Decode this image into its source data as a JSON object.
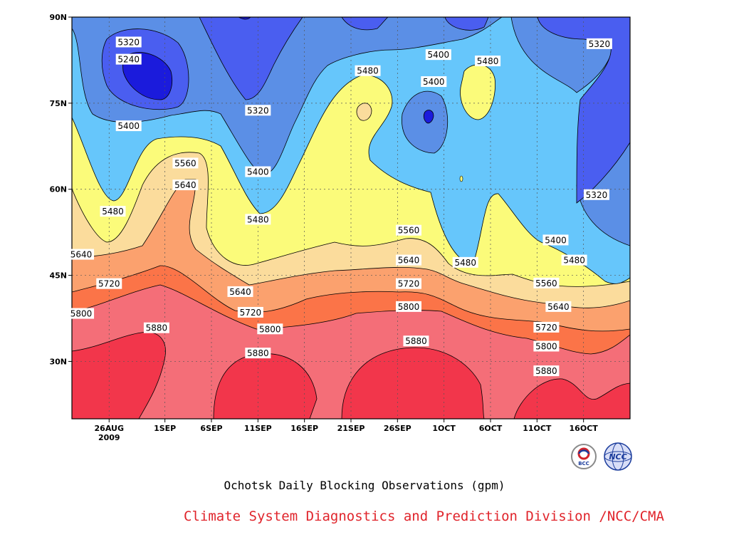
{
  "chart_data": {
    "type": "contour",
    "caption": "Ochotsk Daily Blocking Observations (gpm)",
    "credit": "Climate System Diagnostics and Prediction Division /NCC/CMA",
    "y_ticks": [
      {
        "label": "90N",
        "value": 90
      },
      {
        "label": "75N",
        "value": 75
      },
      {
        "label": "60N",
        "value": 60
      },
      {
        "label": "45N",
        "value": 45
      },
      {
        "label": "30N",
        "value": 30
      }
    ],
    "ylim": [
      20,
      90
    ],
    "x_ticks": [
      {
        "label": "26AUG",
        "sub": "2009",
        "day": 4
      },
      {
        "label": "1SEP",
        "day": 10
      },
      {
        "label": "6SEP",
        "day": 15
      },
      {
        "label": "11SEP",
        "day": 20
      },
      {
        "label": "16SEP",
        "day": 25
      },
      {
        "label": "21SEP",
        "day": 30
      },
      {
        "label": "26SEP",
        "day": 35
      },
      {
        "label": "1OCT",
        "day": 40
      },
      {
        "label": "6OCT",
        "day": 45
      },
      {
        "label": "11OCT",
        "day": 50
      },
      {
        "label": "16OCT",
        "day": 55
      }
    ],
    "xlim": [
      0,
      60
    ],
    "levels": [
      5240,
      5320,
      5400,
      5480,
      5560,
      5640,
      5720,
      5800,
      5880
    ],
    "fill_colors": {
      "below_5240": "#1b1bdc",
      "5240_5320": "#4a5ef0",
      "5320_5400": "#5b8fe6",
      "5400_5480": "#66c6fb",
      "5480_5560": "#fbfb7a",
      "5560_5640": "#fbdc9c",
      "5640_5720": "#fba16e",
      "5720_5800": "#fb7448",
      "5800_5880": "#f46e78",
      "above_5880": "#f2364b"
    },
    "contour_labels": [
      {
        "text": "5320",
        "day": 6.1,
        "lat": 85.6
      },
      {
        "text": "5240",
        "day": 6.1,
        "lat": 82.6
      },
      {
        "text": "5320",
        "day": 20.0,
        "lat": 73.7
      },
      {
        "text": "5400",
        "day": 6.1,
        "lat": 71.0
      },
      {
        "text": "5560",
        "day": 12.2,
        "lat": 64.5
      },
      {
        "text": "5640",
        "day": 12.2,
        "lat": 60.7
      },
      {
        "text": "5400",
        "day": 20.0,
        "lat": 63.0
      },
      {
        "text": "5480",
        "day": 4.4,
        "lat": 56.1
      },
      {
        "text": "5480",
        "day": 20.0,
        "lat": 54.7
      },
      {
        "text": "5480",
        "day": 31.8,
        "lat": 80.6
      },
      {
        "text": "5400",
        "day": 39.4,
        "lat": 83.4
      },
      {
        "text": "5400",
        "day": 38.9,
        "lat": 78.7
      },
      {
        "text": "5480",
        "day": 44.7,
        "lat": 82.3
      },
      {
        "text": "5320",
        "day": 56.7,
        "lat": 85.3
      },
      {
        "text": "5320",
        "day": 56.4,
        "lat": 59.0
      },
      {
        "text": "5400",
        "day": 52.0,
        "lat": 51.1
      },
      {
        "text": "5480",
        "day": 54.0,
        "lat": 47.6
      },
      {
        "text": "5560",
        "day": 36.2,
        "lat": 52.8
      },
      {
        "text": "5480",
        "day": 42.3,
        "lat": 47.2
      },
      {
        "text": "5640",
        "day": 1.0,
        "lat": 48.6
      },
      {
        "text": "5640",
        "day": 36.2,
        "lat": 47.6
      },
      {
        "text": "5560",
        "day": 51.0,
        "lat": 43.6
      },
      {
        "text": "5640",
        "day": 18.1,
        "lat": 42.1
      },
      {
        "text": "5720",
        "day": 4.0,
        "lat": 43.5
      },
      {
        "text": "5720",
        "day": 36.2,
        "lat": 43.5
      },
      {
        "text": "5640",
        "day": 52.3,
        "lat": 39.5
      },
      {
        "text": "5720",
        "day": 19.2,
        "lat": 38.5
      },
      {
        "text": "5800",
        "day": 1.0,
        "lat": 38.3
      },
      {
        "text": "5800",
        "day": 36.2,
        "lat": 39.5
      },
      {
        "text": "5720",
        "day": 51.0,
        "lat": 35.9
      },
      {
        "text": "5800",
        "day": 21.3,
        "lat": 35.6
      },
      {
        "text": "5880",
        "day": 9.1,
        "lat": 35.8
      },
      {
        "text": "5800",
        "day": 51.0,
        "lat": 32.6
      },
      {
        "text": "5880",
        "day": 20.0,
        "lat": 31.4
      },
      {
        "text": "5880",
        "day": 37.0,
        "lat": 33.5
      },
      {
        "text": "5880",
        "day": 51.0,
        "lat": 28.3
      }
    ]
  },
  "logos": {
    "left_logo_text": "BCC",
    "right_logo_text": "NCC"
  }
}
